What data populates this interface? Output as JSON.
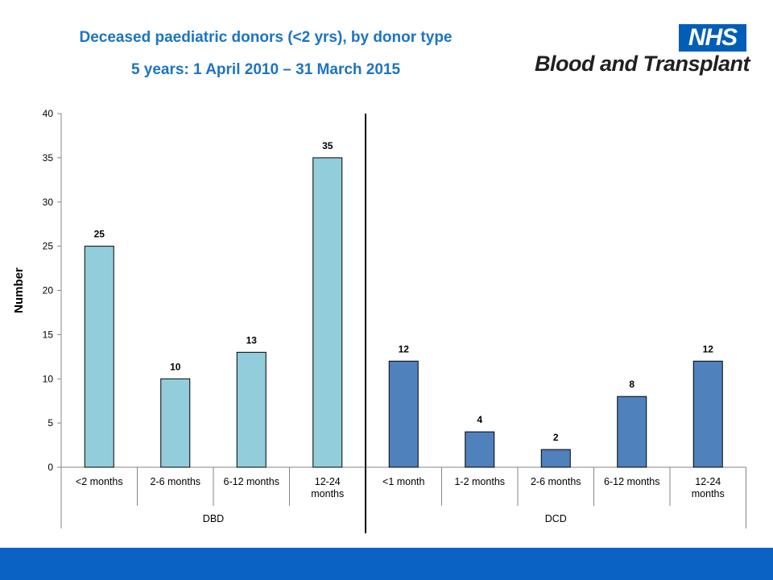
{
  "header": {
    "title": "Deceased paediatric donors (<2 yrs), by donor type",
    "subtitle": "5 years: 1 April 2010 – 31 March 2015"
  },
  "logo": {
    "badge": "NHS",
    "name": "Blood and Transplant",
    "badge_color": "#005eb8"
  },
  "chart_data": {
    "type": "bar",
    "ylabel": "Number",
    "xlabel": "",
    "ylim": [
      0,
      40
    ],
    "yticks": [
      0,
      5,
      10,
      15,
      20,
      25,
      30,
      35,
      40
    ],
    "grid": false,
    "legend": "none",
    "groups": [
      {
        "name": "DBD",
        "color": "#92cddc",
        "categories": [
          "<2 months",
          "2-6 months",
          "6-12 months",
          "12-24 months"
        ],
        "values": [
          25,
          10,
          13,
          35
        ]
      },
      {
        "name": "DCD",
        "color": "#4f81bd",
        "categories": [
          "<1 month",
          "1-2 months",
          "2-6 months",
          "6-12 months",
          "12-24 months"
        ],
        "values": [
          12,
          4,
          2,
          8,
          12
        ]
      }
    ]
  },
  "footer": {
    "color": "#0a62c4"
  }
}
